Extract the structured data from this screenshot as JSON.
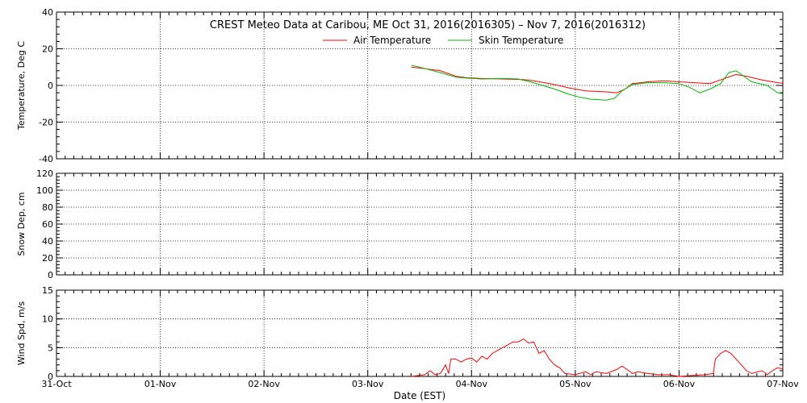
{
  "chart_data": {
    "type": "line",
    "title": "CREST Meteo Data at Caribou, ME   Oct 31, 2016(2016305) – Nov  7, 2016(2016312)",
    "xlabel": "Date (EST)",
    "x_range_days": [
      0,
      7
    ],
    "x_tick_labels": [
      "31-Oct",
      "01-Nov",
      "02-Nov",
      "03-Nov",
      "04-Nov",
      "05-Nov",
      "06-Nov",
      "07-Nov"
    ],
    "grid": true,
    "legend_placement": "top-center",
    "panels": [
      {
        "ylabel": "Temperature, Deg C",
        "ylim": [
          -40,
          40
        ],
        "yticks": [
          -40,
          -20,
          0,
          20,
          40
        ],
        "series": [
          {
            "name": "Air Temperature",
            "color": "#ff0000",
            "points": [
              [
                3.42,
                10
              ],
              [
                3.5,
                9.5
              ],
              [
                3.7,
                8
              ],
              [
                3.85,
                5
              ],
              [
                3.95,
                4.2
              ],
              [
                4.1,
                3.8
              ],
              [
                4.3,
                3.5
              ],
              [
                4.5,
                3.2
              ],
              [
                4.6,
                2.5
              ],
              [
                4.8,
                0.5
              ],
              [
                4.95,
                -1.5
              ],
              [
                5.1,
                -3
              ],
              [
                5.3,
                -3.5
              ],
              [
                5.4,
                -4
              ],
              [
                5.48,
                -2
              ],
              [
                5.55,
                1
              ],
              [
                5.7,
                2
              ],
              [
                5.85,
                2.5
              ],
              [
                6.0,
                2
              ],
              [
                6.15,
                1.5
              ],
              [
                6.3,
                1
              ],
              [
                6.45,
                4
              ],
              [
                6.55,
                6
              ],
              [
                6.65,
                5
              ],
              [
                6.8,
                3
              ],
              [
                6.95,
                1.5
              ],
              [
                7.0,
                1.2
              ]
            ]
          },
          {
            "name": "Skin Temperature",
            "color": "#00bb00",
            "points": [
              [
                3.42,
                11
              ],
              [
                3.5,
                10
              ],
              [
                3.7,
                7
              ],
              [
                3.85,
                4.5
              ],
              [
                3.95,
                4
              ],
              [
                4.1,
                3.5
              ],
              [
                4.3,
                3.8
              ],
              [
                4.45,
                3.5
              ],
              [
                4.6,
                1.5
              ],
              [
                4.8,
                -2
              ],
              [
                4.95,
                -5
              ],
              [
                5.05,
                -6.5
              ],
              [
                5.15,
                -7.5
              ],
              [
                5.3,
                -8
              ],
              [
                5.38,
                -7
              ],
              [
                5.45,
                -3
              ],
              [
                5.55,
                0.5
              ],
              [
                5.7,
                1.5
              ],
              [
                5.85,
                1.5
              ],
              [
                6.0,
                1
              ],
              [
                6.1,
                -1
              ],
              [
                6.2,
                -4
              ],
              [
                6.3,
                -2
              ],
              [
                6.4,
                1
              ],
              [
                6.48,
                7
              ],
              [
                6.55,
                8
              ],
              [
                6.6,
                6
              ],
              [
                6.7,
                2
              ],
              [
                6.85,
                0
              ],
              [
                6.95,
                -4
              ],
              [
                7.0,
                -4.5
              ]
            ]
          }
        ]
      },
      {
        "ylabel": "Snow Dep, cm",
        "ylim": [
          0,
          120
        ],
        "yticks": [
          0,
          20,
          40,
          60,
          80,
          100,
          120
        ],
        "series": []
      },
      {
        "ylabel": "Wind Spd, m/s",
        "ylim": [
          0,
          15
        ],
        "yticks": [
          0,
          5,
          10,
          15
        ],
        "series": [
          {
            "name": "Wind Speed",
            "color": "#ff0000",
            "points": [
              [
                3.42,
                0
              ],
              [
                3.55,
                0.3
              ],
              [
                3.6,
                1
              ],
              [
                3.65,
                0.3
              ],
              [
                3.7,
                0.5
              ],
              [
                3.75,
                2
              ],
              [
                3.78,
                0.5
              ],
              [
                3.8,
                3
              ],
              [
                3.85,
                3
              ],
              [
                3.9,
                2.5
              ],
              [
                3.95,
                3
              ],
              [
                4.0,
                3.2
              ],
              [
                4.05,
                2.5
              ],
              [
                4.1,
                3.5
              ],
              [
                4.15,
                3
              ],
              [
                4.2,
                4
              ],
              [
                4.25,
                4.5
              ],
              [
                4.3,
                5
              ],
              [
                4.35,
                5.5
              ],
              [
                4.4,
                6
              ],
              [
                4.45,
                6
              ],
              [
                4.5,
                6.5
              ],
              [
                4.55,
                5.8
              ],
              [
                4.6,
                6
              ],
              [
                4.65,
                4
              ],
              [
                4.7,
                4.5
              ],
              [
                4.75,
                3
              ],
              [
                4.8,
                2
              ],
              [
                4.85,
                1.5
              ],
              [
                4.9,
                0.5
              ],
              [
                5.0,
                0.3
              ],
              [
                5.1,
                0.8
              ],
              [
                5.15,
                0.3
              ],
              [
                5.2,
                0.8
              ],
              [
                5.3,
                0.5
              ],
              [
                5.4,
                1.2
              ],
              [
                5.45,
                1.8
              ],
              [
                5.5,
                1.2
              ],
              [
                5.55,
                0.5
              ],
              [
                5.6,
                0.8
              ],
              [
                5.7,
                0.5
              ],
              [
                5.8,
                0.3
              ],
              [
                5.9,
                0.3
              ],
              [
                6.0,
                0
              ],
              [
                6.15,
                0.2
              ],
              [
                6.25,
                0.3
              ],
              [
                6.33,
                0.5
              ],
              [
                6.35,
                3
              ],
              [
                6.4,
                4
              ],
              [
                6.45,
                4.5
              ],
              [
                6.5,
                4
              ],
              [
                6.55,
                3
              ],
              [
                6.6,
                2
              ],
              [
                6.65,
                1
              ],
              [
                6.7,
                0.5
              ],
              [
                6.8,
                1
              ],
              [
                6.85,
                0.3
              ],
              [
                6.9,
                1
              ],
              [
                6.95,
                1.5
              ],
              [
                7.0,
                1.3
              ]
            ]
          }
        ]
      }
    ]
  }
}
